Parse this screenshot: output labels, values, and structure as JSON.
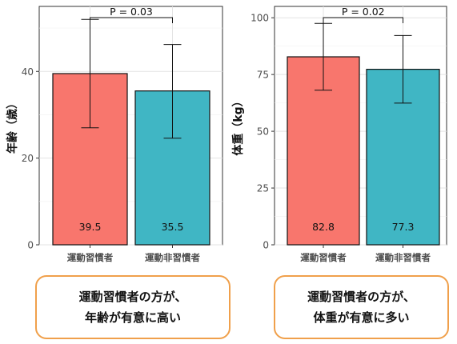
{
  "chart_data": [
    {
      "type": "bar",
      "categories": [
        "運動習慣者",
        "運動非習慣者"
      ],
      "values": [
        39.5,
        35.5
      ],
      "error_bars": {
        "upper": [
          52.0,
          46.2
        ],
        "lower": [
          27.0,
          24.6
        ]
      },
      "data_labels": [
        "39.5",
        "35.5"
      ],
      "colors": [
        "#f8766d",
        "#40b6c4"
      ],
      "ylabel": "年齢（歳）",
      "xlabel": "",
      "ylim": [
        0,
        55
      ],
      "yticks": [
        0,
        20,
        40
      ],
      "grid": true,
      "significance": {
        "label": "P = 0.03"
      }
    },
    {
      "type": "bar",
      "categories": [
        "運動習慣者",
        "運動非習慣者"
      ],
      "values": [
        82.8,
        77.3
      ],
      "error_bars": {
        "upper": [
          97.5,
          92.2
        ],
        "lower": [
          68.1,
          62.4
        ]
      },
      "data_labels": [
        "82.8",
        "77.3"
      ],
      "colors": [
        "#f8766d",
        "#40b6c4"
      ],
      "ylabel": "体重（kg）",
      "xlabel": "",
      "ylim": [
        0,
        105
      ],
      "yticks": [
        0,
        25,
        50,
        75,
        100
      ],
      "grid": true,
      "significance": {
        "label": "P = 0.02"
      }
    }
  ],
  "captions": [
    {
      "line1": "運動習慣者の方が、",
      "line2": "年齢が有意に高い"
    },
    {
      "line1": "運動習慣者の方が、",
      "line2": "体重が有意に多い"
    }
  ]
}
